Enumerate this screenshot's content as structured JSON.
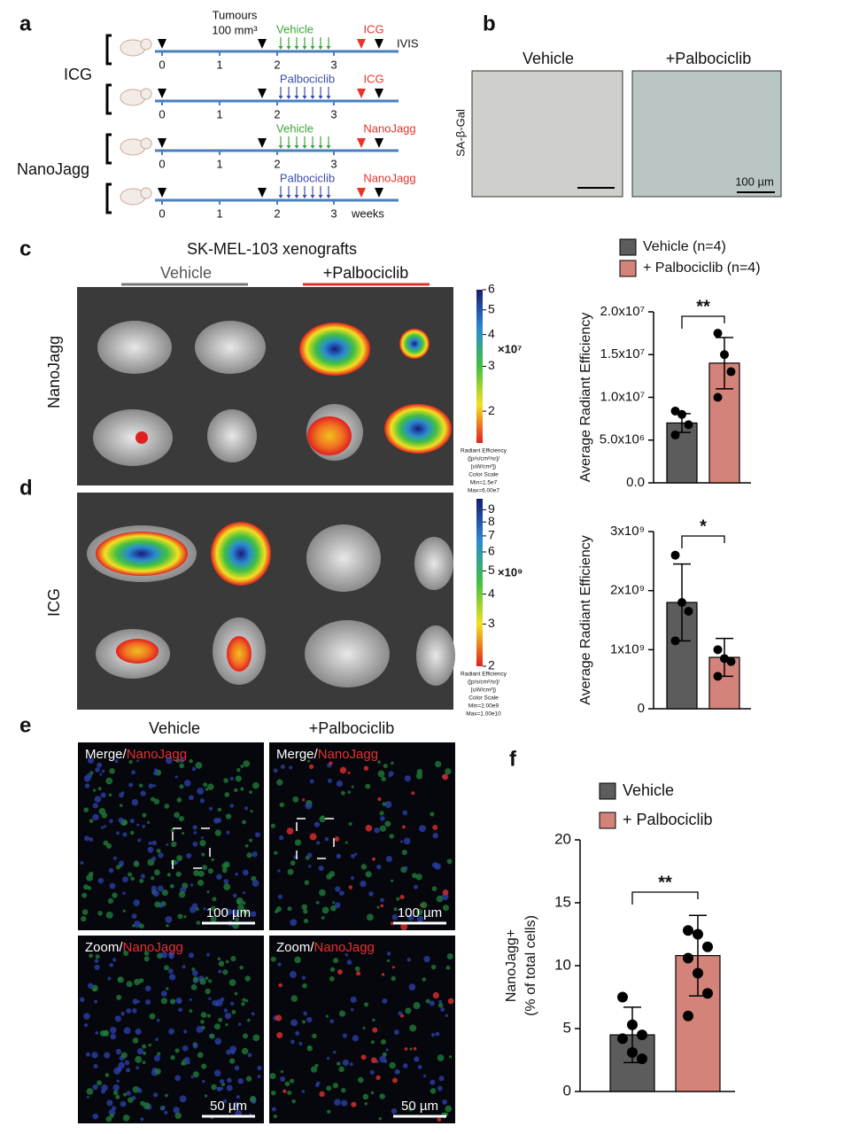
{
  "panel_a": {
    "label": "a",
    "tumours": "Tumours",
    "tumour_size": "100 mm³",
    "ivis": "IVIS",
    "weeks": "weeks",
    "groups": [
      "ICG",
      "NanoJagg"
    ],
    "rows": [
      {
        "treatment": "Vehicle",
        "probe": "ICG",
        "ticks": [
          0,
          1,
          2,
          3
        ]
      },
      {
        "treatment": "Palbociclib",
        "probe": "ICG",
        "ticks": [
          0,
          1,
          2,
          3
        ]
      },
      {
        "treatment": "Vehicle",
        "probe": "NanoJagg",
        "ticks": [
          0,
          1,
          2,
          3
        ]
      },
      {
        "treatment": "Palbociclib",
        "probe": "NanoJagg",
        "ticks": [
          0,
          1,
          2,
          3
        ]
      }
    ]
  },
  "panel_b": {
    "label": "b",
    "columns": [
      "Vehicle",
      "+Palbociclib"
    ],
    "stain": "SA-β-Gal",
    "scale_bar": "100 µm"
  },
  "panel_c": {
    "label": "c",
    "title": "SK-MEL-103 xenografts",
    "columns": [
      "Vehicle",
      "+Palbociclib"
    ],
    "row_label": "NanoJagg",
    "colorbar": {
      "lim": [
        1.5,
        6
      ],
      "ticks": [
        2,
        3,
        4,
        5,
        6
      ],
      "log": true,
      "multiplier": "×10⁷",
      "caption": [
        "Radiant Efficiency",
        "([p/s/cm²/sr]/",
        "[uW/cm²])",
        "Color Scale",
        "Min=1.5e7",
        "Max=6.00e7"
      ]
    }
  },
  "panel_d": {
    "label": "d",
    "row_label": "ICG",
    "colorbar": {
      "lim": [
        2,
        10
      ],
      "ticks": [
        2,
        3,
        4,
        5,
        6,
        7,
        8,
        9
      ],
      "log": true,
      "multiplier": "×10⁹",
      "caption": [
        "Radiant Efficiency",
        "([p/s/cm²/sr]/",
        "[uW/cm²])",
        "Color Scale",
        "Min=2.00e9",
        "Max=1.00e10"
      ]
    }
  },
  "panel_e": {
    "label": "e",
    "columns": [
      "Vehicle",
      "+Palbociclib"
    ],
    "rows": [
      {
        "prefix": "Merge/",
        "channel": "NanoJagg",
        "scale_bar": "100 µm"
      },
      {
        "prefix": "Zoom/",
        "channel": "NanoJagg",
        "scale_bar": "50 µm"
      }
    ]
  },
  "panel_f": {
    "label": "f"
  },
  "chart_data": [
    {
      "type": "bar",
      "y_label": "Average Radiant Efficiency",
      "ylim": [
        0,
        20000000
      ],
      "yticks": [
        {
          "value": 0,
          "label": "0.0"
        },
        {
          "value": 5000000,
          "label": "5.0x10⁶"
        },
        {
          "value": 10000000,
          "label": "1.0x10⁷"
        },
        {
          "value": 15000000,
          "label": "1.5x10⁷"
        },
        {
          "value": 20000000,
          "label": "2.0x10⁷"
        }
      ],
      "significance": "**",
      "series": [
        {
          "name": "Vehicle (n=4)",
          "color": "#5c5c5c",
          "values": [
            7000000
          ],
          "errors": [
            1100000
          ],
          "points": [
            8400000,
            8000000,
            6800000,
            5600000
          ]
        },
        {
          "name": "+ Palbociclib (n=4)",
          "color": "#d4837a",
          "values": [
            14000000
          ],
          "errors": [
            3000000
          ],
          "points": [
            17500000,
            15000000,
            13000000,
            10000000
          ]
        }
      ]
    },
    {
      "type": "bar",
      "y_label": "Average Radiant Efficiency",
      "ylim": [
        0,
        3000000000
      ],
      "yticks": [
        0,
        {
          "value": 1000000000,
          "label": "1x10⁹"
        },
        {
          "value": 2000000000,
          "label": "2x10⁹"
        },
        {
          "value": 3000000000,
          "label": "3x10⁹"
        }
      ],
      "significance": "*",
      "series": [
        {
          "color": "#5c5c5c",
          "values": [
            1800000000
          ],
          "errors": [
            650000000
          ],
          "points": [
            2600000000,
            1800000000,
            1650000000,
            1150000000
          ]
        },
        {
          "color": "#d4837a",
          "values": [
            870000000
          ],
          "errors": [
            320000000
          ],
          "points": [
            1000000000,
            850000000,
            800000000,
            550000000
          ]
        }
      ]
    },
    {
      "type": "bar",
      "y_label": [
        "NanoJagg+",
        "(% of total cells)"
      ],
      "ylim": [
        0,
        20
      ],
      "yticks": [
        0,
        5,
        10,
        15,
        20
      ],
      "significance": "**",
      "series": [
        {
          "name": "Vehicle",
          "color": "#5c5c5c",
          "values": [
            4.5
          ],
          "errors": [
            2.2
          ],
          "points": [
            7.5,
            5.3,
            4.5,
            4.2,
            3.1,
            2.6
          ]
        },
        {
          "name": "+ Palbociclib",
          "color": "#d4837a",
          "values": [
            10.8
          ],
          "errors": [
            3.2
          ],
          "points": [
            12.8,
            12.5,
            11.5,
            10.6,
            9.4,
            7.8,
            6.0
          ]
        }
      ]
    }
  ]
}
